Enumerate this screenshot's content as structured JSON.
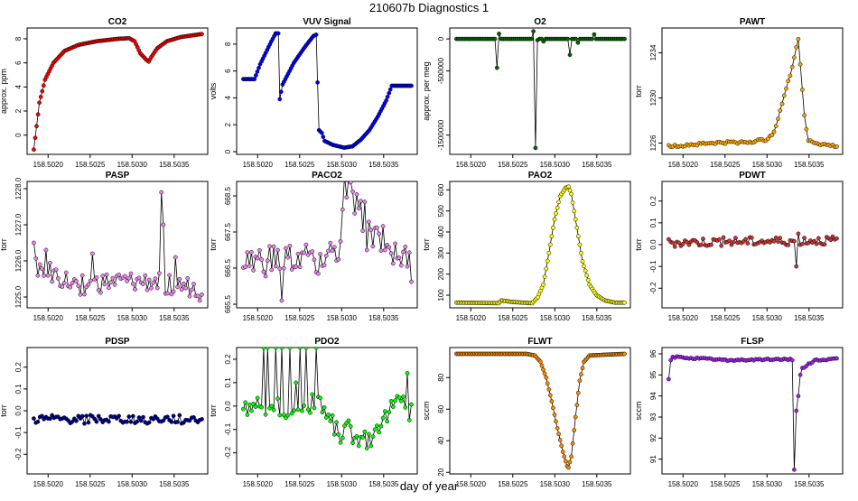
{
  "title": "210607b   Diagnostics 1",
  "xlabel": "day of year",
  "chart_data": [
    {
      "type": "line",
      "title": "CO2",
      "ylabel": "approx. ppm",
      "color": "#ff0000",
      "ylim": [
        -1.6,
        8.9
      ],
      "yticks": [
        0,
        2,
        4,
        6,
        8
      ],
      "yticklabels": [
        "0",
        "2",
        "4",
        "6",
        "8"
      ],
      "xlim": [
        158.50175,
        158.5039
      ],
      "xticks": [
        158.502,
        158.5025,
        158.503,
        158.5035
      ],
      "xticklabels": [
        "158.5020",
        "158.5025",
        "158.5030",
        "158.5035"
      ],
      "x_start": 158.50183,
      "x_end": 158.50383,
      "n": 121,
      "anchors": [
        [
          0,
          -1.2
        ],
        [
          4,
          2.7
        ],
        [
          8,
          4.6
        ],
        [
          14,
          6.0
        ],
        [
          22,
          7.0
        ],
        [
          32,
          7.5
        ],
        [
          45,
          7.8
        ],
        [
          60,
          8.0
        ],
        [
          68,
          8.05
        ],
        [
          72,
          7.8
        ],
        [
          76,
          6.8
        ],
        [
          80,
          6.3
        ],
        [
          82,
          6.1
        ],
        [
          84,
          6.5
        ],
        [
          88,
          7.2
        ],
        [
          95,
          7.8
        ],
        [
          105,
          8.15
        ],
        [
          120,
          8.4
        ]
      ]
    },
    {
      "type": "line",
      "title": "VUV Signal",
      "ylabel": "volts",
      "color": "#0000ff",
      "ylim": [
        -0.2,
        9.2
      ],
      "yticks": [
        0,
        2,
        4,
        6,
        8
      ],
      "yticklabels": [
        "0",
        "2",
        "4",
        "6",
        "8"
      ],
      "xlim": [
        158.50175,
        158.5039
      ],
      "xticks": [
        158.502,
        158.5025,
        158.503,
        158.5035
      ],
      "xticklabels": [
        "158.5020",
        "158.5025",
        "158.5030",
        "158.5035"
      ],
      "x_start": 158.50183,
      "x_end": 158.50383,
      "n": 121,
      "anchors": [
        [
          0,
          5.4
        ],
        [
          8,
          5.4
        ],
        [
          12,
          6.5
        ],
        [
          20,
          8.2
        ],
        [
          23,
          8.8
        ],
        [
          25,
          8.8
        ],
        [
          26,
          3.9
        ],
        [
          28,
          5.0
        ],
        [
          32,
          5.8
        ],
        [
          36,
          6.6
        ],
        [
          44,
          7.8
        ],
        [
          50,
          8.6
        ],
        [
          52,
          8.7
        ],
        [
          54,
          1.6
        ],
        [
          56,
          1.4
        ],
        [
          58,
          0.8
        ],
        [
          64,
          0.5
        ],
        [
          72,
          0.3
        ],
        [
          78,
          0.4
        ],
        [
          84,
          0.9
        ],
        [
          90,
          1.6
        ],
        [
          96,
          2.6
        ],
        [
          102,
          3.8
        ],
        [
          106,
          4.9
        ],
        [
          110,
          4.9
        ]
      ]
    },
    {
      "type": "line",
      "title": "O2",
      "ylabel": "approx. per meg",
      "color": "#006400",
      "ylim": [
        -1800000,
        170000
      ],
      "yticks": [
        0,
        -500000,
        -1500000
      ],
      "yticklabels": [
        "0",
        "-500000",
        "-1500000"
      ],
      "xlim": [
        158.50175,
        158.5039
      ],
      "xticks": [
        158.502,
        158.5025,
        158.503,
        158.5035
      ],
      "xticklabels": [
        "158.5020",
        "158.5025",
        "158.5030",
        "158.5035"
      ],
      "x_start": 158.50183,
      "x_end": 158.50383,
      "n": 84,
      "anchors": [
        [
          0,
          0
        ],
        [
          83,
          0
        ]
      ],
      "spikes": [
        [
          20,
          -450000
        ],
        [
          21,
          80000
        ],
        [
          38,
          120000
        ],
        [
          39,
          -1700000
        ],
        [
          40,
          -20000
        ],
        [
          43,
          -40000
        ],
        [
          56,
          -250000
        ],
        [
          60,
          -60000
        ],
        [
          68,
          70000
        ]
      ]
    },
    {
      "type": "line",
      "title": "PAWT",
      "ylabel": "torr",
      "color": "#ffa500",
      "ylim": [
        1225.0,
        1236.2
      ],
      "yticks": [
        1226,
        1230,
        1234
      ],
      "yticklabels": [
        "1226",
        "1230",
        "1234"
      ],
      "xlim": [
        158.50175,
        158.5039
      ],
      "xticks": [
        158.502,
        158.5025,
        158.503,
        158.5035
      ],
      "xticklabels": [
        "158.5020",
        "158.5025",
        "158.5030",
        "158.5035"
      ],
      "x_start": 158.50183,
      "x_end": 158.50383,
      "n": 84,
      "anchors": [
        [
          0,
          1225.7
        ],
        [
          20,
          1226.0
        ],
        [
          40,
          1226.1
        ],
        [
          48,
          1226.3
        ],
        [
          52,
          1227.0
        ],
        [
          56,
          1229.5
        ],
        [
          58,
          1230.8
        ],
        [
          60,
          1232.0
        ],
        [
          63,
          1234.5
        ],
        [
          64,
          1235.2
        ],
        [
          65,
          1233.0
        ],
        [
          67,
          1228.5
        ],
        [
          69,
          1226.2
        ],
        [
          75,
          1225.9
        ],
        [
          83,
          1225.7
        ]
      ],
      "noise": 0.12
    },
    {
      "type": "line",
      "title": "PASP",
      "ylabel": "torr",
      "color": "#ee82ee",
      "ylim": [
        1224.7,
        1228.2
      ],
      "yticks": [
        1225,
        1226,
        1227,
        1228
      ],
      "yticklabels": [
        "1225.0",
        "1226.0",
        "1227.0",
        "1228.0"
      ],
      "xlim": [
        158.50175,
        158.5039
      ],
      "xticks": [
        158.502,
        158.5025,
        158.503,
        158.5035
      ],
      "xticklabels": [
        "158.5020",
        "158.5025",
        "158.5030",
        "158.5035"
      ],
      "x_start": 158.50183,
      "x_end": 158.50383,
      "n": 84,
      "anchors": [
        [
          0,
          1225.9
        ],
        [
          10,
          1225.6
        ],
        [
          20,
          1225.3
        ],
        [
          40,
          1225.4
        ],
        [
          60,
          1225.4
        ],
        [
          83,
          1225.2
        ]
      ],
      "noise": 0.28,
      "spikes": [
        [
          0,
          1226.5
        ],
        [
          6,
          1226.3
        ],
        [
          29,
          1226.2
        ],
        [
          63,
          1227.9
        ],
        [
          64,
          1227.0
        ],
        [
          70,
          1226.1
        ],
        [
          82,
          1224.9
        ]
      ]
    },
    {
      "type": "line",
      "title": "PACO2",
      "ylabel": "torr",
      "color": "#ee82ee",
      "ylim": [
        665.4,
        668.9
      ],
      "yticks": [
        665.5,
        666.5,
        667.5,
        668.5
      ],
      "yticklabels": [
        "665.5",
        "666.5",
        "667.5",
        "668.5"
      ],
      "xlim": [
        158.50175,
        158.5039
      ],
      "xticks": [
        158.502,
        158.5025,
        158.503,
        158.5035
      ],
      "xticklabels": [
        "158.5020",
        "158.5025",
        "158.5030",
        "158.5035"
      ],
      "x_start": 158.50183,
      "x_end": 158.50383,
      "n": 84,
      "anchors": [
        [
          0,
          666.6
        ],
        [
          40,
          666.8
        ],
        [
          48,
          667.0
        ],
        [
          50,
          668.7
        ],
        [
          55,
          668.3
        ],
        [
          60,
          667.9
        ],
        [
          62,
          667.5
        ],
        [
          70,
          667.3
        ],
        [
          83,
          666.5
        ]
      ],
      "noise": 0.45,
      "spikes": [
        [
          19,
          665.6
        ],
        [
          61,
          667.0
        ]
      ]
    },
    {
      "type": "line",
      "title": "PAO2",
      "ylabel": "torr",
      "color": "#ffff00",
      "ylim": [
        40,
        640
      ],
      "yticks": [
        100,
        200,
        300,
        400,
        500,
        600
      ],
      "yticklabels": [
        "100",
        "200",
        "300",
        "400",
        "500",
        "600"
      ],
      "xlim": [
        158.50175,
        158.5039
      ],
      "xticks": [
        158.502,
        158.5025,
        158.503,
        158.5035
      ],
      "xticklabels": [
        "158.5020",
        "158.5025",
        "158.5030",
        "158.5035"
      ],
      "x_start": 158.50183,
      "x_end": 158.50383,
      "n": 121,
      "anchors": [
        [
          0,
          65
        ],
        [
          30,
          62
        ],
        [
          32,
          75
        ],
        [
          40,
          68
        ],
        [
          54,
          62
        ],
        [
          58,
          90
        ],
        [
          62,
          150
        ],
        [
          66,
          300
        ],
        [
          70,
          460
        ],
        [
          74,
          570
        ],
        [
          78,
          610
        ],
        [
          80,
          615
        ],
        [
          82,
          580
        ],
        [
          86,
          420
        ],
        [
          90,
          260
        ],
        [
          95,
          150
        ],
        [
          100,
          100
        ],
        [
          106,
          75
        ],
        [
          113,
          65
        ]
      ]
    },
    {
      "type": "line",
      "title": "PDWT",
      "ylabel": "torr",
      "color": "#cd3333",
      "ylim": [
        -0.29,
        0.29
      ],
      "yticks": [
        -0.2,
        -0.1,
        0,
        0.1,
        0.2
      ],
      "yticklabels": [
        "-0.2",
        "-0.1",
        "0.0",
        "0.1",
        "0.2"
      ],
      "xlim": [
        158.50175,
        158.5039
      ],
      "xticks": [
        158.502,
        158.5025,
        158.503,
        158.5035
      ],
      "xticklabels": [
        "158.5020",
        "158.5025",
        "158.5030",
        "158.5035"
      ],
      "x_start": 158.50183,
      "x_end": 158.50383,
      "n": 84,
      "anchors": [
        [
          0,
          0.01
        ],
        [
          83,
          0.02
        ]
      ],
      "noise": 0.02,
      "spikes": [
        [
          63,
          -0.1
        ],
        [
          64,
          0.05
        ]
      ]
    },
    {
      "type": "line",
      "title": "PDSP",
      "ylabel": "torr",
      "color": "#00008b",
      "ylim": [
        -0.29,
        0.29
      ],
      "yticks": [
        -0.2,
        -0.1,
        0,
        0.1,
        0.2
      ],
      "yticklabels": [
        "-0.2",
        "-0.1",
        "0.0",
        "0.1",
        "0.2"
      ],
      "xlim": [
        158.50175,
        158.5039
      ],
      "xticks": [
        158.502,
        158.5025,
        158.503,
        158.5035
      ],
      "xticklabels": [
        "158.5020",
        "158.5025",
        "158.5030",
        "158.5035"
      ],
      "x_start": 158.50183,
      "x_end": 158.50383,
      "n": 84,
      "anchors": [
        [
          0,
          -0.04
        ],
        [
          83,
          -0.04
        ]
      ],
      "noise": 0.02
    },
    {
      "type": "line",
      "title": "PDO2",
      "ylabel": "torr",
      "color": "#00ff00",
      "ylim": [
        -0.29,
        0.25
      ],
      "yticks": [
        -0.2,
        -0.1,
        0,
        0.1,
        0.2
      ],
      "yticklabels": [
        "-0.2",
        "-0.1",
        "0.0",
        "0.1",
        "0.2"
      ],
      "xlim": [
        158.50175,
        158.5039
      ],
      "xticks": [
        158.502,
        158.5025,
        158.503,
        158.5035
      ],
      "xticklabels": [
        "158.5020",
        "158.5025",
        "158.5030",
        "158.5035"
      ],
      "x_start": 158.50183,
      "x_end": 158.50383,
      "n": 84,
      "anchors": [
        [
          0,
          0
        ],
        [
          38,
          0
        ],
        [
          40,
          -0.02
        ],
        [
          44,
          -0.08
        ],
        [
          48,
          -0.12
        ],
        [
          52,
          -0.1
        ],
        [
          56,
          -0.15
        ],
        [
          60,
          -0.08
        ],
        [
          64,
          -0.1
        ],
        [
          70,
          -0.05
        ],
        [
          76,
          0.02
        ],
        [
          83,
          0.02
        ]
      ],
      "noise": 0.04,
      "spikes": [
        [
          10,
          0.25
        ],
        [
          12,
          0.25
        ],
        [
          14,
          0
        ],
        [
          16,
          0.25
        ],
        [
          19,
          0.25
        ],
        [
          21,
          -0.05
        ],
        [
          23,
          0.25
        ],
        [
          26,
          0.1
        ],
        [
          28,
          0.25
        ],
        [
          31,
          0.25
        ],
        [
          34,
          0.05
        ],
        [
          36,
          0.25
        ],
        [
          61,
          -0.18
        ],
        [
          63,
          -0.17
        ],
        [
          81,
          0.14
        ],
        [
          82,
          -0.06
        ]
      ]
    },
    {
      "type": "line",
      "title": "FLWT",
      "ylabel": "sccm",
      "color": "#ff8c00",
      "ylim": [
        19,
        99
      ],
      "yticks": [
        20,
        40,
        60,
        80
      ],
      "yticklabels": [
        "20",
        "40",
        "60",
        "80"
      ],
      "xlim": [
        158.50175,
        158.5039
      ],
      "xticks": [
        158.502,
        158.5025,
        158.503,
        158.5035
      ],
      "xticklabels": [
        "158.5020",
        "158.5025",
        "158.5030",
        "158.5035"
      ],
      "x_start": 158.50183,
      "x_end": 158.50383,
      "n": 121,
      "anchors": [
        [
          0,
          95
        ],
        [
          50,
          95
        ],
        [
          56,
          94
        ],
        [
          60,
          90
        ],
        [
          64,
          80
        ],
        [
          68,
          65
        ],
        [
          72,
          48
        ],
        [
          76,
          33
        ],
        [
          79,
          24
        ],
        [
          80,
          23
        ],
        [
          82,
          30
        ],
        [
          85,
          55
        ],
        [
          88,
          78
        ],
        [
          91,
          90
        ],
        [
          95,
          94
        ],
        [
          120,
          95
        ]
      ]
    },
    {
      "type": "line",
      "title": "FLSP",
      "ylabel": "sccm",
      "color": "#a020f0",
      "ylim": [
        90.3,
        96.3
      ],
      "yticks": [
        91,
        92,
        93,
        94,
        95,
        96
      ],
      "yticklabels": [
        "91",
        "92",
        "93",
        "94",
        "95",
        "96"
      ],
      "xlim": [
        158.50175,
        158.5039
      ],
      "xticks": [
        158.502,
        158.5025,
        158.503,
        158.5035
      ],
      "xticklabels": [
        "158.5020",
        "158.5025",
        "158.5030",
        "158.5035"
      ],
      "x_start": 158.50183,
      "x_end": 158.50383,
      "n": 84,
      "anchors": [
        [
          0,
          95.5
        ],
        [
          2,
          95.85
        ],
        [
          30,
          95.7
        ],
        [
          60,
          95.75
        ],
        [
          61,
          95.7
        ],
        [
          63,
          95.6
        ],
        [
          64,
          95.0
        ],
        [
          66,
          95.3
        ],
        [
          72,
          95.7
        ],
        [
          83,
          95.75
        ]
      ],
      "noise": 0.04,
      "spikes": [
        [
          0,
          94.8
        ],
        [
          61,
          95.7
        ],
        [
          62,
          90.5
        ],
        [
          63,
          93.3
        ],
        [
          64,
          94.0
        ],
        [
          65,
          95.0
        ]
      ]
    }
  ]
}
